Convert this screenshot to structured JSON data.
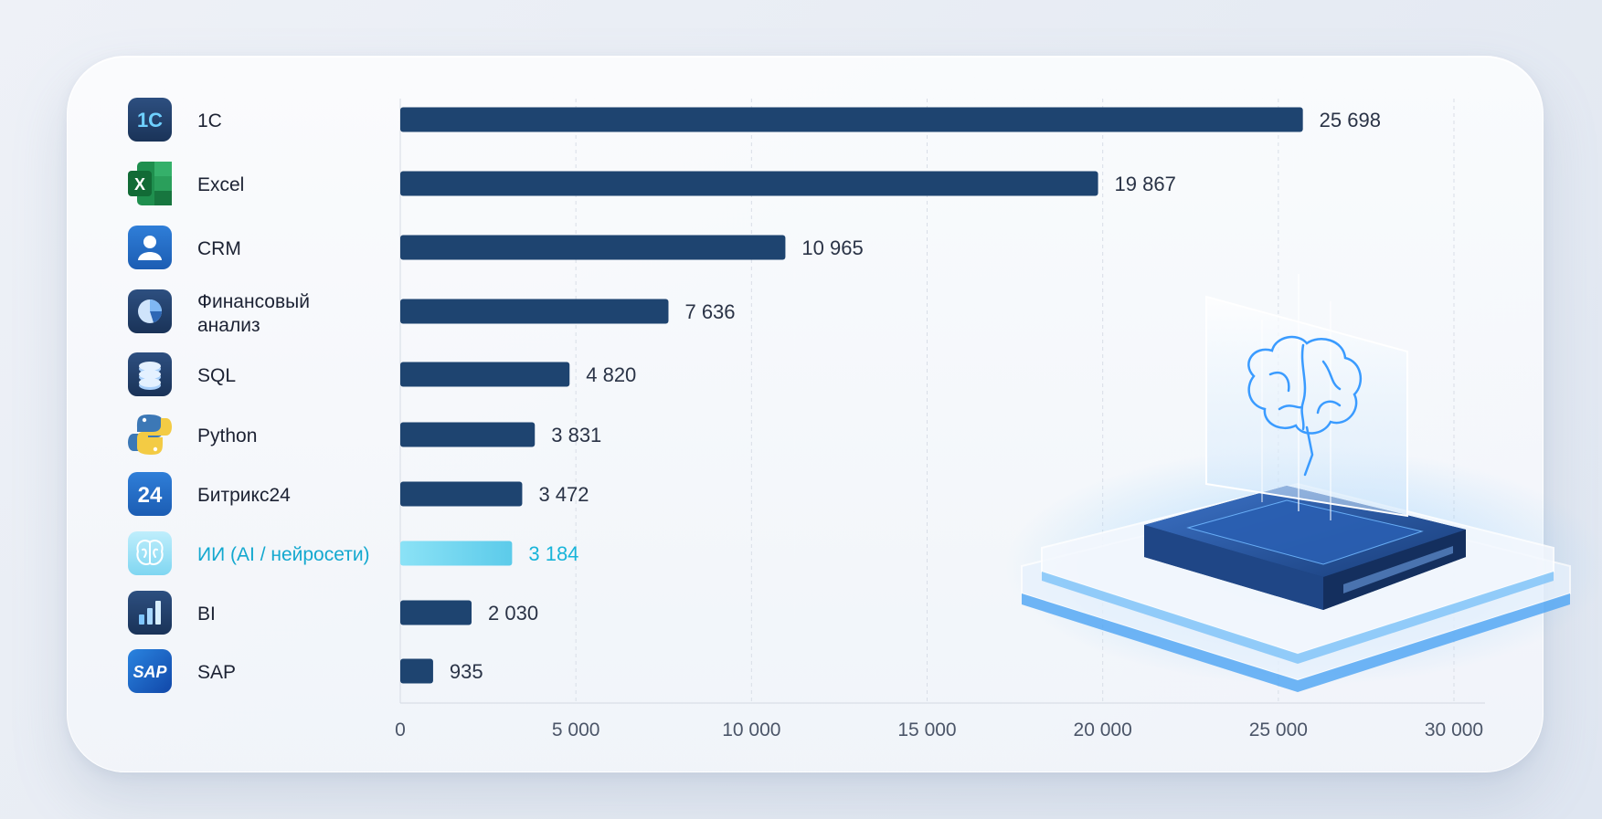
{
  "chart_data": {
    "type": "bar",
    "orientation": "horizontal",
    "categories": [
      "1С",
      "Excel",
      "CRM",
      "Финансовый анализ",
      "SQL",
      "Python",
      "Битрикс24",
      "ИИ (AI / нейросети)",
      "BI",
      "SAP"
    ],
    "values": [
      25698,
      19867,
      10965,
      7636,
      4820,
      3831,
      3472,
      3184,
      2030,
      935
    ],
    "value_labels": [
      "25 698",
      "19 867",
      "10 965",
      "7 636",
      "4 820",
      "3 831",
      "3 472",
      "3 184",
      "2 030",
      "935"
    ],
    "highlight_index": 7,
    "icons": [
      "1c-logo-icon",
      "excel-icon",
      "user-icon",
      "pie-chart-icon",
      "database-icon",
      "python-icon",
      "bitrix24-icon",
      "brain-icon",
      "bar-chart-icon",
      "sap-logo-icon"
    ],
    "xticks": [
      0,
      5000,
      10000,
      15000,
      20000,
      25000,
      30000
    ],
    "xtick_labels": [
      "0",
      "5 000",
      "10 000",
      "15 000",
      "20 000",
      "25 000",
      "30 000"
    ],
    "xlim": [
      0,
      30000
    ],
    "grid": true,
    "colors": {
      "bar": "#1e4470",
      "highlight": "#6fd3ef",
      "highlight_text": "#13a8cf"
    },
    "icon_texts": {
      "onec": "1С",
      "excel": "X",
      "bitrix": "24",
      "sap": "SAP"
    }
  }
}
